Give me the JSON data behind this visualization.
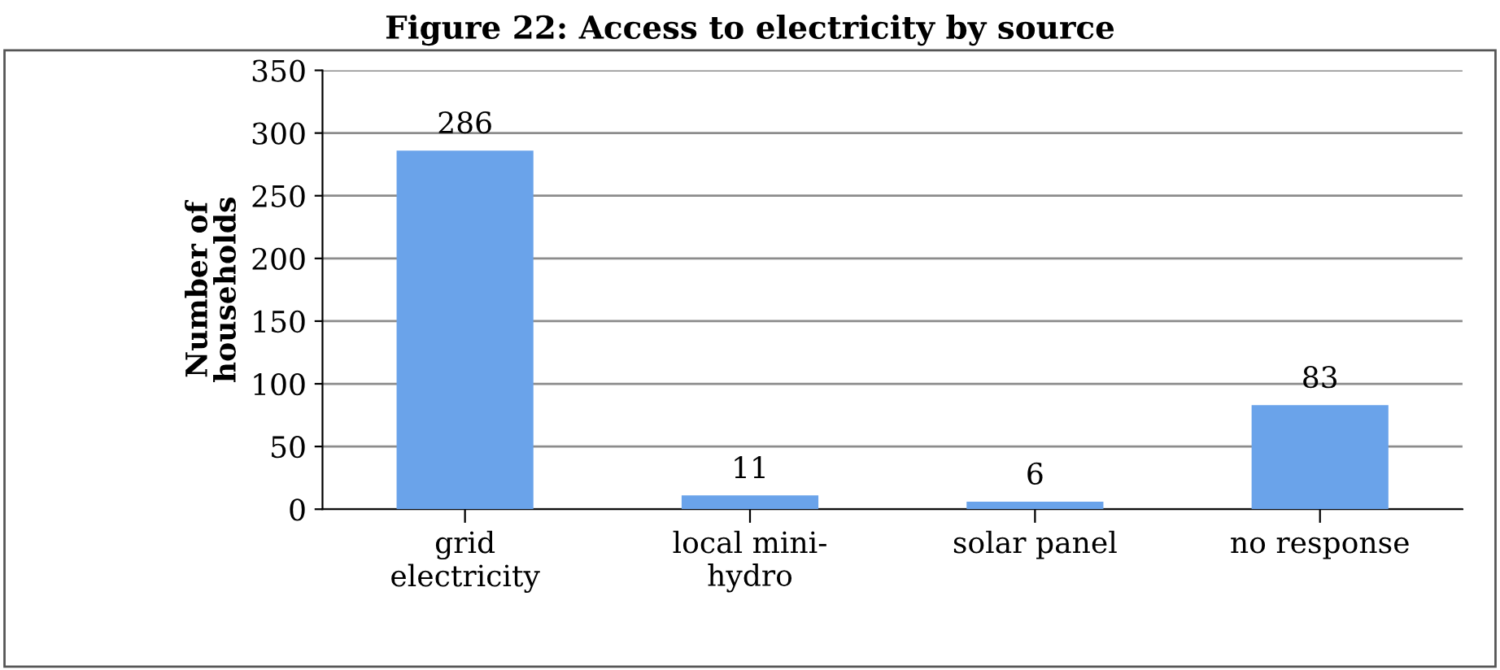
{
  "chart_data": {
    "type": "bar",
    "title": "Figure 22: Access to electricity by source",
    "ylabel": "Number of\nhouseholds",
    "categories": [
      "grid\nelectricity",
      "local mini-\nhydro",
      "solar panel",
      "no response"
    ],
    "values": [
      286,
      11,
      6,
      83
    ],
    "color": "#6aa3ea",
    "ylim": [
      0,
      350
    ],
    "yticks": [
      0,
      50,
      100,
      150,
      200,
      250,
      300,
      350
    ],
    "grid": "y",
    "data_labels": true
  }
}
